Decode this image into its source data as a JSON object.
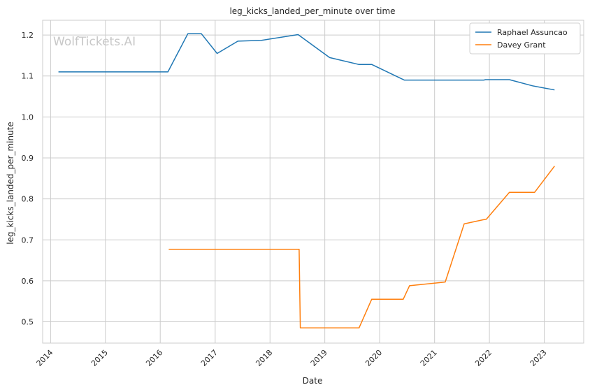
{
  "chart_data": {
    "type": "line",
    "title": "leg_kicks_landed_per_minute over time",
    "xlabel": "Date",
    "ylabel": "leg_kicks_landed_per_minute",
    "watermark": "WolfTickets.AI",
    "xlim": [
      "2013-11-09",
      "2023-09-21"
    ],
    "ylim": [
      0.448,
      1.236
    ],
    "x_ticks": [
      "2014",
      "2015",
      "2016",
      "2017",
      "2018",
      "2019",
      "2020",
      "2021",
      "2022",
      "2023"
    ],
    "y_ticks": [
      "0.5",
      "0.6",
      "0.7",
      "0.8",
      "0.9",
      "1.0",
      "1.1",
      "1.2"
    ],
    "grid": true,
    "legend_position": "top-right",
    "colors": {
      "Raphael Assuncao": "#1f77b4",
      "Davey Grant": "#ff7f0e"
    },
    "series": [
      {
        "name": "Raphael Assuncao",
        "color": "#1f77b4",
        "points": [
          [
            "2014-02-22",
            1.11
          ],
          [
            "2016-02-21",
            1.11
          ],
          [
            "2016-07-03",
            1.203
          ],
          [
            "2016-10-01",
            1.203
          ],
          [
            "2017-01-14",
            1.155
          ],
          [
            "2017-06-01",
            1.185
          ],
          [
            "2017-11-05",
            1.187
          ],
          [
            "2018-07-07",
            1.201
          ],
          [
            "2019-02-02",
            1.145
          ],
          [
            "2019-08-16",
            1.128
          ],
          [
            "2019-11-10",
            1.128
          ],
          [
            "2020-06-13",
            1.09
          ],
          [
            "2021-11-25",
            1.09
          ],
          [
            "2021-12-06",
            1.091
          ],
          [
            "2022-05-14",
            1.091
          ],
          [
            "2022-10-15",
            1.076
          ],
          [
            "2023-03-11",
            1.066
          ]
        ]
      },
      {
        "name": "Davey Grant",
        "color": "#ff7f0e",
        "points": [
          [
            "2016-02-27",
            0.677
          ],
          [
            "2018-07-14",
            0.677
          ],
          [
            "2018-07-22",
            0.485
          ],
          [
            "2019-08-17",
            0.485
          ],
          [
            "2019-11-09",
            0.555
          ],
          [
            "2020-06-06",
            0.555
          ],
          [
            "2020-07-18",
            0.588
          ],
          [
            "2021-03-13",
            0.597
          ],
          [
            "2021-07-17",
            0.739
          ],
          [
            "2021-11-20",
            0.749
          ],
          [
            "2021-12-11",
            0.75
          ],
          [
            "2022-05-14",
            0.816
          ],
          [
            "2022-10-29",
            0.816
          ],
          [
            "2023-03-11",
            0.88
          ]
        ]
      }
    ]
  }
}
